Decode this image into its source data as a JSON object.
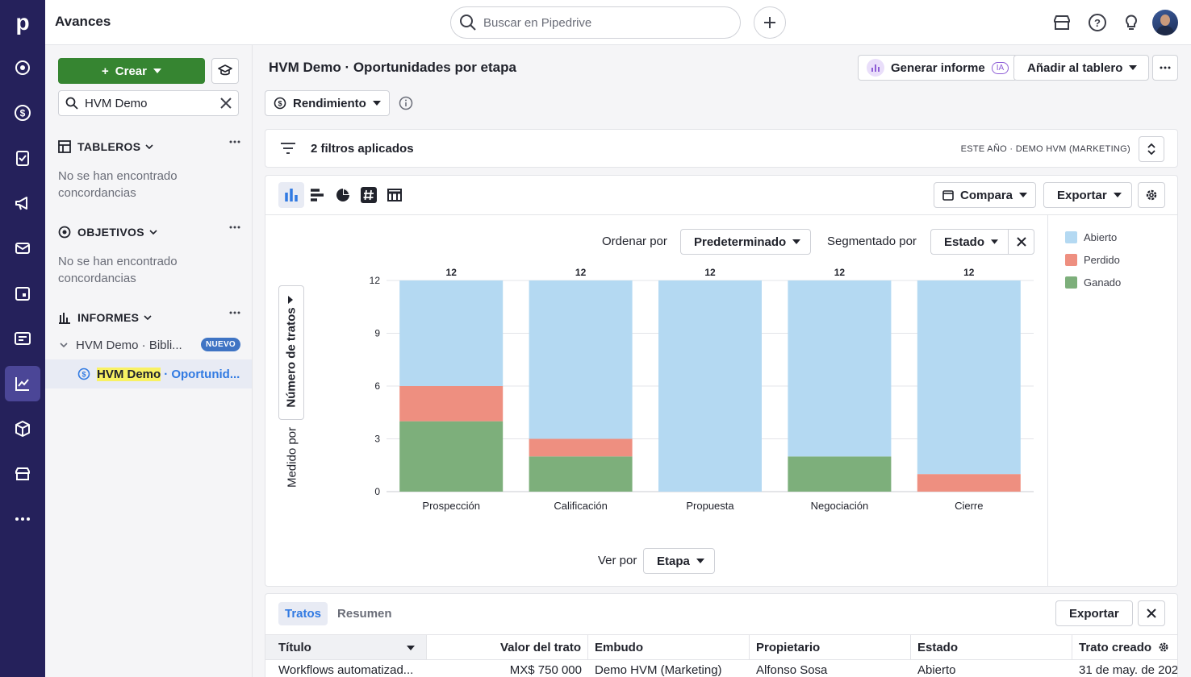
{
  "app": {
    "title": "Avances"
  },
  "search": {
    "placeholder": "Buscar en Pipedrive"
  },
  "sidebar": {
    "create_label": "Crear",
    "search_value": "HVM Demo",
    "sections": [
      {
        "label": "TABLEROS",
        "empty": "No se han encontrado concordancias"
      },
      {
        "label": "OBJETIVOS",
        "empty": "No se han encontrado concordancias"
      },
      {
        "label": "INFORMES"
      }
    ],
    "tree": {
      "folder": "HVM Demo · Bibli...",
      "badge": "NUEVO",
      "item_highlight": "HVM Demo",
      "item_rest": "· Oportunid..."
    }
  },
  "report": {
    "title": "HVM Demo · Oportunidades por etapa",
    "generate_label": "Generar informe",
    "ia_badge": "IA",
    "add_dashboard": "Añadir al tablero",
    "metric": "Rendimiento",
    "filters_text": "2 filtros aplicados",
    "filter_tags": "ESTE AÑO · DEMO HVM (MARKETING)",
    "compare": "Compara",
    "export": "Exportar",
    "sort_label": "Ordenar por",
    "sort_value": "Predeterminado",
    "segment_label": "Segmentado por",
    "segment_value": "Estado",
    "viewby_label": "Ver por",
    "viewby_value": "Etapa",
    "measured_by": "Medido por",
    "measure_value": "Número de tratos"
  },
  "chart_data": {
    "type": "bar",
    "stacked": true,
    "categories": [
      "Prospección",
      "Calificación",
      "Propuesta",
      "Negociación",
      "Cierre"
    ],
    "series": [
      {
        "name": "Ganado",
        "color": "#7daf7b",
        "values": [
          4,
          2,
          0,
          2,
          0
        ]
      },
      {
        "name": "Perdido",
        "color": "#ee8f80",
        "values": [
          2,
          1,
          0,
          0,
          1
        ]
      },
      {
        "name": "Abierto",
        "color": "#b4d9f2",
        "values": [
          6,
          9,
          12,
          10,
          11
        ]
      }
    ],
    "totals": [
      12,
      12,
      12,
      12,
      12
    ],
    "yticks": [
      0,
      3,
      6,
      9,
      12
    ],
    "ylim": [
      0,
      12
    ],
    "ylabel": "Número de tratos",
    "xlabel": "Etapa",
    "legend": [
      "Abierto",
      "Perdido",
      "Ganado"
    ],
    "legend_position": "right",
    "grid": true
  },
  "table": {
    "tabs": [
      "Tratos",
      "Resumen"
    ],
    "export": "Exportar",
    "columns": [
      "Título",
      "Valor del trato",
      "Embudo",
      "Propietario",
      "Estado",
      "Trato creado"
    ],
    "rows": [
      [
        "Workflows automatizad...",
        "MX$ 750 000",
        "Demo HVM (Marketing)",
        "Alfonso Sosa",
        "Abierto",
        "31 de may. de 202"
      ]
    ]
  }
}
